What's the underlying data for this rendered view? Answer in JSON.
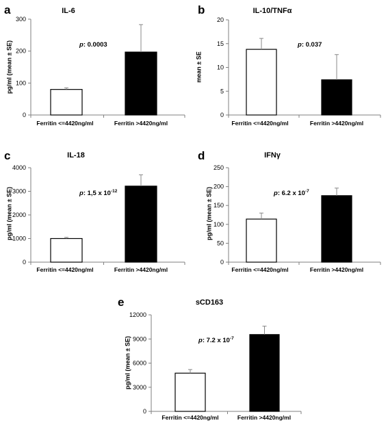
{
  "chart_data": [
    {
      "panel": "a",
      "title": "IL-6",
      "type": "bar",
      "ylabel": "pg/ml (mean ± SE)",
      "categories": [
        "Ferritin <=4420ng/ml",
        "Ferritin >4420ng/ml"
      ],
      "values": [
        80,
        197
      ],
      "errors": [
        5,
        86
      ],
      "ylim": [
        0,
        300
      ],
      "yticks": [
        "0",
        "100",
        "200",
        "300"
      ],
      "p_label": "p",
      "p_value": ": 0.0003",
      "p_exp": ""
    },
    {
      "panel": "b",
      "title": "IL-10/TNFα",
      "type": "bar",
      "ylabel": "mean ± SE",
      "categories": [
        "Ferritin <=4420ng/ml",
        "Ferritin >4420ng/ml"
      ],
      "values": [
        13.8,
        7.4
      ],
      "errors": [
        2.3,
        5.3
      ],
      "ylim": [
        0,
        20
      ],
      "yticks": [
        "0",
        "5",
        "10",
        "15",
        "20"
      ],
      "p_label": "p",
      "p_value": ": 0.037",
      "p_exp": ""
    },
    {
      "panel": "c",
      "title": "IL-18",
      "type": "bar",
      "ylabel": "pg/ml (mean ± SE)",
      "categories": [
        "Ferritin <=4420ng/ml",
        "Ferritin >4420ng/ml"
      ],
      "values": [
        1000,
        3220
      ],
      "errors": [
        50,
        480
      ],
      "ylim": [
        0,
        4000
      ],
      "yticks": [
        "0",
        "1000",
        "2000",
        "3000",
        "4000"
      ],
      "p_label": "p",
      "p_value": ": 1,5 x 10",
      "p_exp": "-12"
    },
    {
      "panel": "d",
      "title": "IFNγ",
      "type": "bar",
      "ylabel": "pg/ml (mean ± SE)",
      "categories": [
        "Ferritin <=4420ng/ml",
        "Ferritin >4420ng/ml"
      ],
      "values": [
        114,
        176
      ],
      "errors": [
        16,
        20
      ],
      "ylim": [
        0,
        250
      ],
      "yticks": [
        "0",
        "50",
        "100",
        "150",
        "200",
        "250"
      ],
      "p_label": "p",
      "p_value": ": 6.2 x 10",
      "p_exp": "-7"
    },
    {
      "panel": "e",
      "title": "sCD163",
      "type": "bar",
      "ylabel": "pg/ml (mean ± SE)",
      "categories": [
        "Ferritin <=4420ng/ml",
        "Ferritin >4420ng/ml"
      ],
      "values": [
        4750,
        9550
      ],
      "errors": [
        450,
        1050
      ],
      "ylim": [
        0,
        12000
      ],
      "yticks": [
        "0",
        "3000",
        "6000",
        "9000",
        "12000"
      ],
      "p_label": "p",
      "p_value": ": 7.2 x 10",
      "p_exp": "-7"
    }
  ],
  "colors": {
    "bar_low": "#ffffff",
    "bar_high": "#000000",
    "axis": "#7f7f7f"
  }
}
